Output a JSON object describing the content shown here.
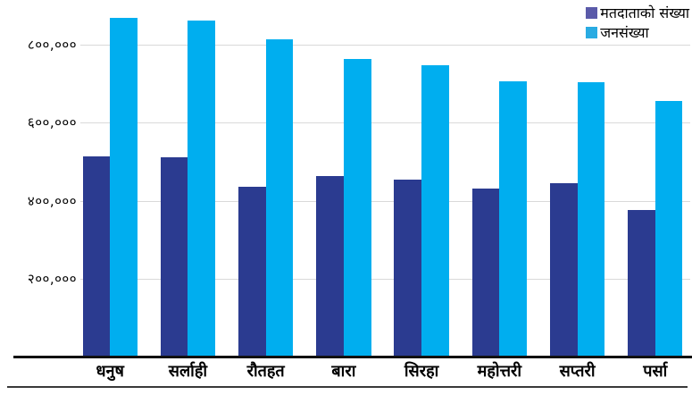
{
  "legend": {
    "position": "top-right",
    "items": [
      {
        "label": "मतदाताको संख्या",
        "swatch_color": "#5a5aa9"
      },
      {
        "label": "जनसंख्या",
        "swatch_color": "#29abe2"
      }
    ]
  },
  "colors": {
    "series1_bar": "#2b3b90",
    "series2_bar": "#00aeef",
    "gridline": "#d9d9d9",
    "axis_line": "#111111",
    "bottom_rule": "#3a3a3a",
    "text": "#000000",
    "background": "#ffffff"
  },
  "chart_data": {
    "type": "bar",
    "title": "",
    "xlabel": "",
    "ylabel": "",
    "categories": [
      "धनुष",
      "सर्लाही",
      "रौतहत",
      "बारा",
      "सिरहा",
      "महोत्तरी",
      "सप्तरी",
      "पर्सा"
    ],
    "series": [
      {
        "name": "मतदाताको संख्या",
        "color": "#2b3b90",
        "values": [
          514000,
          512000,
          436000,
          464000,
          453000,
          430000,
          445000,
          376000
        ]
      },
      {
        "name": "जनसंख्या",
        "color": "#00aeef",
        "values": [
          867739,
          862470,
          813573,
          763137,
          748214,
          706994,
          703036,
          656375
        ]
      }
    ],
    "y_ticks": [
      {
        "label": "८००,०००",
        "value": 800000
      },
      {
        "label": "६००,०००",
        "value": 600000
      },
      {
        "label": "४००,०००",
        "value": 400000
      },
      {
        "label": "२००,०००",
        "value": 200000
      }
    ],
    "ylim": [
      0,
      915000
    ],
    "grid": "horizontal",
    "legend_position": "top-right"
  }
}
